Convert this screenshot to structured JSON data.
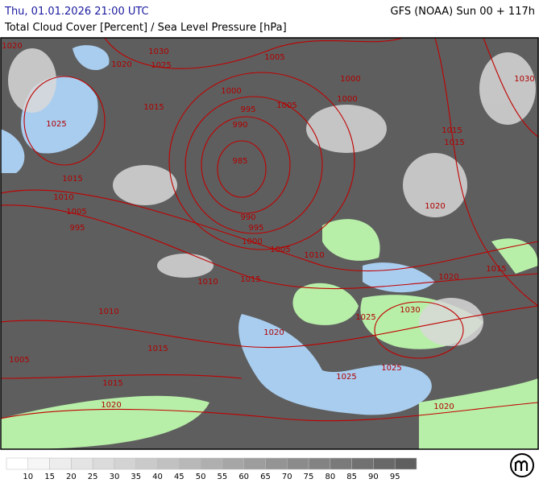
{
  "header": {
    "datetime": "Thu, 01.01.2026 21:00 UTC",
    "model": "GFS (NOAA) Sun 00 + 117h",
    "title": "Total Cloud Cover [Percent] / Sea Level Pressure [hPa]"
  },
  "isobar_labels": [
    "1020",
    "1030",
    "1020",
    "1025",
    "1005",
    "1030",
    "1000",
    "1000",
    "1015",
    "1005",
    "1000",
    "995",
    "1025",
    "990",
    "1015",
    "1015",
    "985",
    "1015",
    "1010",
    "1020",
    "1005",
    "990",
    "995",
    "995",
    "1000",
    "1005",
    "1010",
    "1015",
    "1010",
    "1015",
    "1020",
    "1010",
    "1030",
    "1025",
    "1020",
    "1015",
    "1005",
    "1025",
    "1025",
    "1015",
    "1020",
    "1020"
  ],
  "legend": {
    "labels": [
      "10",
      "15",
      "20",
      "25",
      "30",
      "35",
      "40",
      "45",
      "50",
      "55",
      "60",
      "65",
      "70",
      "75",
      "80",
      "85",
      "90",
      "95"
    ]
  }
}
